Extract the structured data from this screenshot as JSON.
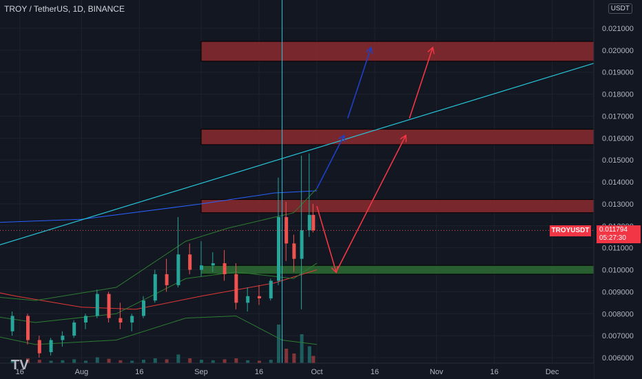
{
  "header": {
    "title": "TROY / TetherUS, 1D, BINANCE",
    "currency_button": "USDT"
  },
  "price_tag": {
    "symbol": "TROYUSDT",
    "price": "0.011794",
    "countdown": "05:27:30"
  },
  "colors": {
    "background": "#131722",
    "up": "#26a69a",
    "down": "#ef5350",
    "trendline": "#26c6da",
    "resistance_zone": "#8b2a2e",
    "support_zone": "#2e6b34",
    "blue_arrow": "#1e40c8",
    "red_arrow": "#f23645",
    "ma_blue": "#2962ff",
    "ma_red": "#e53935",
    "bb_green": "#2e7d32",
    "volume": "#26a69a"
  },
  "chart_data": {
    "type": "candlestick",
    "ylim": [
      0.0058,
      0.0222
    ],
    "y_ticks": [
      "0.021000",
      "0.020000",
      "0.019000",
      "0.018000",
      "0.017000",
      "0.016000",
      "0.015000",
      "0.014000",
      "0.013000",
      "0.012000",
      "0.011000",
      "0.010000",
      "0.009000",
      "0.008000",
      "0.007000",
      "0.006000"
    ],
    "x_tick_labels": [
      "16",
      "Aug",
      "16",
      "Sep",
      "16",
      "Oct",
      "16",
      "Nov",
      "16",
      "Dec"
    ],
    "x_tick_dates": [
      "2021-07-16",
      "2021-08-01",
      "2021-08-16",
      "2021-09-01",
      "2021-09-16",
      "2021-10-01",
      "2021-10-16",
      "2021-11-01",
      "2021-11-16",
      "2021-12-01"
    ],
    "candles": [
      {
        "date": "2021-07-02",
        "open": 0.008,
        "high": 0.00815,
        "low": 0.0077,
        "close": 0.00785
      },
      {
        "date": "2021-07-06",
        "open": 0.0079,
        "high": 0.0082,
        "low": 0.0074,
        "close": 0.0076
      },
      {
        "date": "2021-07-10",
        "open": 0.0076,
        "high": 0.0079,
        "low": 0.007,
        "close": 0.0072
      },
      {
        "date": "2021-07-14",
        "open": 0.0072,
        "high": 0.0081,
        "low": 0.007,
        "close": 0.0079
      },
      {
        "date": "2021-07-18",
        "open": 0.0079,
        "high": 0.008,
        "low": 0.0066,
        "close": 0.0068
      },
      {
        "date": "2021-07-21",
        "open": 0.0068,
        "high": 0.007,
        "low": 0.006,
        "close": 0.0062
      },
      {
        "date": "2021-07-24",
        "open": 0.00625,
        "high": 0.0069,
        "low": 0.0061,
        "close": 0.0068
      },
      {
        "date": "2021-07-27",
        "open": 0.0068,
        "high": 0.0072,
        "low": 0.0065,
        "close": 0.007
      },
      {
        "date": "2021-07-30",
        "open": 0.007,
        "high": 0.0077,
        "low": 0.0069,
        "close": 0.0076
      },
      {
        "date": "2021-08-02",
        "open": 0.0076,
        "high": 0.008,
        "low": 0.0073,
        "close": 0.0079
      },
      {
        "date": "2021-08-05",
        "open": 0.0079,
        "high": 0.0091,
        "low": 0.0078,
        "close": 0.0089
      },
      {
        "date": "2021-08-08",
        "open": 0.0089,
        "high": 0.009,
        "low": 0.0076,
        "close": 0.0078
      },
      {
        "date": "2021-08-11",
        "open": 0.0078,
        "high": 0.0085,
        "low": 0.0073,
        "close": 0.0076
      },
      {
        "date": "2021-08-14",
        "open": 0.0076,
        "high": 0.008,
        "low": 0.0072,
        "close": 0.0079
      },
      {
        "date": "2021-08-17",
        "open": 0.0079,
        "high": 0.0088,
        "low": 0.0078,
        "close": 0.0086
      },
      {
        "date": "2021-08-20",
        "open": 0.0086,
        "high": 0.01,
        "low": 0.0085,
        "close": 0.0098
      },
      {
        "date": "2021-08-23",
        "open": 0.0098,
        "high": 0.0105,
        "low": 0.009,
        "close": 0.0093
      },
      {
        "date": "2021-08-26",
        "open": 0.0093,
        "high": 0.0124,
        "low": 0.0092,
        "close": 0.0107
      },
      {
        "date": "2021-08-29",
        "open": 0.0107,
        "high": 0.0112,
        "low": 0.0098,
        "close": 0.01
      },
      {
        "date": "2021-09-01",
        "open": 0.01,
        "high": 0.0113,
        "low": 0.0097,
        "close": 0.0102
      },
      {
        "date": "2021-09-04",
        "open": 0.0102,
        "high": 0.0108,
        "low": 0.0099,
        "close": 0.0103
      },
      {
        "date": "2021-09-07",
        "open": 0.0103,
        "high": 0.0109,
        "low": 0.0095,
        "close": 0.0098
      },
      {
        "date": "2021-09-10",
        "open": 0.0098,
        "high": 0.0103,
        "low": 0.0082,
        "close": 0.0085
      },
      {
        "date": "2021-09-13",
        "open": 0.0085,
        "high": 0.0092,
        "low": 0.0081,
        "close": 0.0088
      },
      {
        "date": "2021-09-16",
        "open": 0.0088,
        "high": 0.0093,
        "low": 0.0084,
        "close": 0.0087
      },
      {
        "date": "2021-09-19",
        "open": 0.0087,
        "high": 0.0096,
        "low": 0.0086,
        "close": 0.0095
      },
      {
        "date": "2021-09-21",
        "open": 0.0095,
        "high": 0.0142,
        "low": 0.0093,
        "close": 0.0124
      },
      {
        "date": "2021-09-23",
        "open": 0.0124,
        "high": 0.0131,
        "low": 0.0104,
        "close": 0.0112
      },
      {
        "date": "2021-09-25",
        "open": 0.0112,
        "high": 0.0116,
        "low": 0.0099,
        "close": 0.0105
      },
      {
        "date": "2021-09-27",
        "open": 0.0105,
        "high": 0.0152,
        "low": 0.0082,
        "close": 0.0118
      },
      {
        "date": "2021-09-29",
        "open": 0.0118,
        "high": 0.0153,
        "low": 0.0115,
        "close": 0.0125
      },
      {
        "date": "2021-09-30",
        "open": 0.0125,
        "high": 0.013,
        "low": 0.0117,
        "close": 0.011794
      }
    ],
    "volumes_relative": [
      0.08,
      0.06,
      0.05,
      0.06,
      0.1,
      0.07,
      0.05,
      0.06,
      0.08,
      0.05,
      0.12,
      0.09,
      0.06,
      0.05,
      0.07,
      0.1,
      0.08,
      0.18,
      0.1,
      0.07,
      0.06,
      0.08,
      0.1,
      0.06,
      0.05,
      0.07,
      0.8,
      0.3,
      0.2,
      0.6,
      0.35,
      0.15
    ],
    "moving_averages": [
      {
        "color_key": "ma_blue",
        "points": [
          [
            "2021-07-01",
            0.0121
          ],
          [
            "2021-08-01",
            0.0123
          ],
          [
            "2021-09-01",
            0.013
          ],
          [
            "2021-09-20",
            0.0135
          ],
          [
            "2021-10-01",
            0.0136
          ]
        ]
      },
      {
        "color_key": "ma_red",
        "points": [
          [
            "2021-07-01",
            0.0093
          ],
          [
            "2021-07-15",
            0.0088
          ],
          [
            "2021-08-01",
            0.0083
          ],
          [
            "2021-08-15",
            0.0082
          ],
          [
            "2021-09-01",
            0.0088
          ],
          [
            "2021-09-20",
            0.0094
          ],
          [
            "2021-10-01",
            0.01
          ]
        ]
      },
      {
        "color_key": "bb_green",
        "points": [
          [
            "2021-07-01",
            0.0081
          ],
          [
            "2021-07-20",
            0.0076
          ],
          [
            "2021-08-10",
            0.008
          ],
          [
            "2021-08-28",
            0.0096
          ],
          [
            "2021-09-10",
            0.0099
          ],
          [
            "2021-09-25",
            0.0096
          ],
          [
            "2021-10-01",
            0.0103
          ]
        ]
      },
      {
        "color_key": "bb_green",
        "points": [
          [
            "2021-07-01",
            0.0089
          ],
          [
            "2021-07-20",
            0.0086
          ],
          [
            "2021-08-10",
            0.0092
          ],
          [
            "2021-08-28",
            0.0113
          ],
          [
            "2021-09-08",
            0.0119
          ],
          [
            "2021-09-25",
            0.0126
          ],
          [
            "2021-10-01",
            0.0137
          ]
        ]
      },
      {
        "color_key": "bb_green",
        "points": [
          [
            "2021-07-01",
            0.0073
          ],
          [
            "2021-07-20",
            0.0066
          ],
          [
            "2021-08-10",
            0.0068
          ],
          [
            "2021-08-28",
            0.0078
          ],
          [
            "2021-09-10",
            0.0079
          ],
          [
            "2021-09-22",
            0.0068
          ],
          [
            "2021-10-01",
            0.0066
          ]
        ]
      }
    ],
    "trendline": {
      "from": [
        "2021-06-28",
        0.01045
      ],
      "to": [
        "2021-12-16",
        0.01963
      ]
    },
    "vertical_line": "2021-09-22",
    "zones": [
      {
        "kind": "resistance",
        "from": "2021-09-01",
        "to": "2021-12-17",
        "top": 0.0204,
        "bottom": 0.0195
      },
      {
        "kind": "resistance",
        "from": "2021-09-01",
        "to": "2021-12-17",
        "top": 0.0164,
        "bottom": 0.0157
      },
      {
        "kind": "resistance",
        "from": "2021-09-01",
        "to": "2021-12-17",
        "top": 0.0132,
        "bottom": 0.0126
      },
      {
        "kind": "support",
        "from": "2021-09-01",
        "to": "2021-12-17",
        "top": 0.0102,
        "bottom": 0.0098
      }
    ],
    "arrows": [
      {
        "color_key": "blue_arrow",
        "from": [
          "2021-10-01",
          0.0137
        ],
        "to": [
          "2021-10-08",
          0.0161
        ]
      },
      {
        "color_key": "blue_arrow",
        "from": [
          "2021-10-09",
          0.0169
        ],
        "to": [
          "2021-10-15",
          0.0201
        ]
      },
      {
        "color_key": "red_arrow",
        "from": [
          "2021-10-01",
          0.0129
        ],
        "to": [
          "2021-10-06",
          0.0099
        ]
      },
      {
        "color_key": "red_arrow",
        "from": [
          "2021-10-06",
          0.0099
        ],
        "to": [
          "2021-10-24",
          0.0161
        ]
      },
      {
        "color_key": "red_arrow",
        "from": [
          "2021-10-25",
          0.0169
        ],
        "to": [
          "2021-10-31",
          0.0201
        ]
      }
    ],
    "last_price": 0.011794
  }
}
